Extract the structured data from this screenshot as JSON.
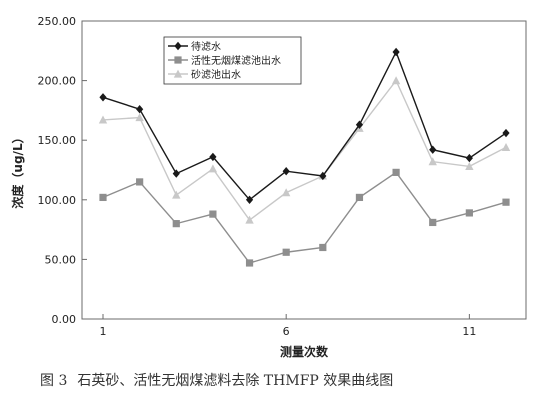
{
  "chart_data": {
    "type": "line",
    "ylabel": "浓度（ug/L）",
    "xlabel": "测量次数",
    "ylim": [
      0,
      250
    ],
    "yticks": [
      "0.00",
      "50.00",
      "100.00",
      "150.00",
      "200.00",
      "250.00"
    ],
    "xlim": [
      1,
      12
    ],
    "xticks": [
      1,
      6,
      11
    ],
    "legend_position": "top-left",
    "series": [
      {
        "name": "待滤水",
        "marker": "diamond",
        "color": "#1a1a1a",
        "values": [
          186,
          176,
          122,
          136,
          100,
          124,
          120,
          163,
          224,
          142,
          135,
          156
        ]
      },
      {
        "name": "活性无烟煤滤池出水",
        "marker": "square",
        "color": "#8e8e8e",
        "values": [
          102,
          115,
          80,
          88,
          47,
          56,
          60,
          102,
          123,
          81,
          89,
          98
        ]
      },
      {
        "name": "砂滤池出水",
        "marker": "triangle",
        "color": "#c8c8c8",
        "values": [
          167,
          169,
          104,
          126,
          83,
          106,
          120,
          160,
          200,
          132,
          128,
          144
        ]
      }
    ]
  },
  "caption": {
    "label": "图 3",
    "text": "石英砂、活性无烟煤滤料去除 THMFP 效果曲线图"
  }
}
